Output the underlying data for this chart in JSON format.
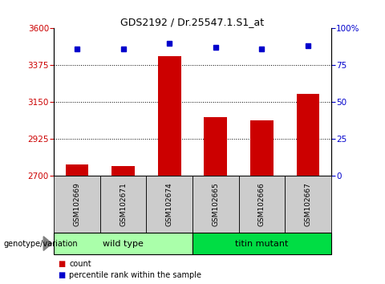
{
  "title": "GDS2192 / Dr.25547.1.S1_at",
  "samples": [
    "GSM102669",
    "GSM102671",
    "GSM102674",
    "GSM102665",
    "GSM102666",
    "GSM102667"
  ],
  "counts": [
    2770,
    2762,
    3430,
    3060,
    3040,
    3200
  ],
  "percentiles": [
    86,
    86,
    90,
    87,
    86,
    88
  ],
  "ylim_left": [
    2700,
    3600
  ],
  "yticks_left": [
    2700,
    2925,
    3150,
    3375,
    3600
  ],
  "ylim_right": [
    0,
    100
  ],
  "yticks_right": [
    0,
    25,
    50,
    75,
    100
  ],
  "bar_color": "#cc0000",
  "dot_color": "#0000cc",
  "groups": [
    {
      "label": "wild type",
      "indices": [
        0,
        1,
        2
      ],
      "color": "#aaffaa"
    },
    {
      "label": "titin mutant",
      "indices": [
        3,
        4,
        5
      ],
      "color": "#00dd44"
    }
  ],
  "group_label": "genotype/variation",
  "legend_count_label": "count",
  "legend_pct_label": "percentile rank within the sample",
  "grid_color": "black",
  "tick_label_color_left": "#cc0000",
  "tick_label_color_right": "#0000cc",
  "sample_bg_color": "#cccccc",
  "fig_bg_color": "#ffffff"
}
